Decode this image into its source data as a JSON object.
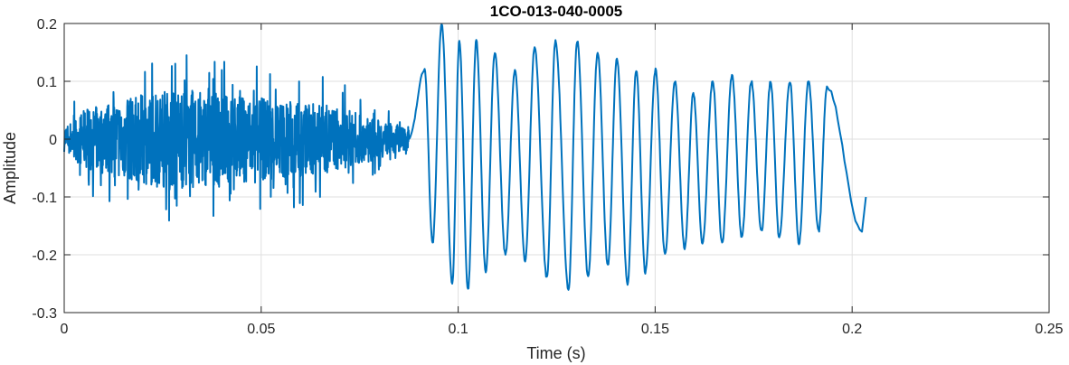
{
  "chart_data": {
    "type": "line",
    "title": "1CO-013-040-0005",
    "xlabel": "Time (s)",
    "ylabel": "Amplitude",
    "xlim": [
      0,
      0.25
    ],
    "ylim": [
      -0.3,
      0.2
    ],
    "xticks": [
      0,
      0.05,
      0.1,
      0.15,
      0.2,
      0.25
    ],
    "xtick_labels": [
      "0",
      "0.05",
      "0.1",
      "0.15",
      "0.2",
      "0.25"
    ],
    "yticks": [
      -0.3,
      -0.2,
      -0.1,
      0,
      0.1,
      0.2
    ],
    "ytick_labels": [
      "-0.3",
      "-0.2",
      "-0.1",
      "0",
      "0.1",
      "0.2"
    ],
    "grid": true,
    "line_color": "#0072BD",
    "series": [
      {
        "x_start": 0,
        "x_end": 0.2035,
        "noise_segment": {
          "x_end": 0.0875,
          "envelope": [
            [
              0.0,
              0.04
            ],
            [
              0.005,
              0.09
            ],
            [
              0.012,
              0.12
            ],
            [
              0.02,
              0.14
            ],
            [
              0.03,
              0.16
            ],
            [
              0.04,
              0.14
            ],
            [
              0.05,
              0.13
            ],
            [
              0.06,
              0.12
            ],
            [
              0.07,
              0.1
            ],
            [
              0.08,
              0.06
            ],
            [
              0.0875,
              0.03
            ]
          ]
        },
        "oscillation_cycles": [
          {
            "peak_x": 0.0915,
            "peak_y": 0.12,
            "trough_x": 0.0935,
            "trough_y": -0.18
          },
          {
            "peak_x": 0.0958,
            "peak_y": 0.2,
            "trough_x": 0.0985,
            "trough_y": -0.25
          },
          {
            "peak_x": 0.1003,
            "peak_y": 0.17,
            "trough_x": 0.1025,
            "trough_y": -0.26
          },
          {
            "peak_x": 0.1046,
            "peak_y": 0.17,
            "trough_x": 0.107,
            "trough_y": -0.23
          },
          {
            "peak_x": 0.1093,
            "peak_y": 0.15,
            "trough_x": 0.112,
            "trough_y": -0.2
          },
          {
            "peak_x": 0.1144,
            "peak_y": 0.12,
            "trough_x": 0.117,
            "trough_y": -0.21
          },
          {
            "peak_x": 0.1194,
            "peak_y": 0.16,
            "trough_x": 0.1225,
            "trough_y": -0.24
          },
          {
            "peak_x": 0.1247,
            "peak_y": 0.17,
            "trough_x": 0.128,
            "trough_y": -0.26
          },
          {
            "peak_x": 0.1302,
            "peak_y": 0.17,
            "trough_x": 0.133,
            "trough_y": -0.24
          },
          {
            "peak_x": 0.1354,
            "peak_y": 0.15,
            "trough_x": 0.138,
            "trough_y": -0.22
          },
          {
            "peak_x": 0.1403,
            "peak_y": 0.14,
            "trough_x": 0.143,
            "trough_y": -0.25
          },
          {
            "peak_x": 0.1452,
            "peak_y": 0.12,
            "trough_x": 0.1475,
            "trough_y": -0.23
          },
          {
            "peak_x": 0.1501,
            "peak_y": 0.12,
            "trough_x": 0.1525,
            "trough_y": -0.2
          },
          {
            "peak_x": 0.155,
            "peak_y": 0.1,
            "trough_x": 0.1575,
            "trough_y": -0.19
          },
          {
            "peak_x": 0.1597,
            "peak_y": 0.08,
            "trough_x": 0.162,
            "trough_y": -0.18
          },
          {
            "peak_x": 0.1646,
            "peak_y": 0.1,
            "trough_x": 0.167,
            "trough_y": -0.18
          },
          {
            "peak_x": 0.1695,
            "peak_y": 0.11,
            "trough_x": 0.172,
            "trough_y": -0.17
          },
          {
            "peak_x": 0.1744,
            "peak_y": 0.1,
            "trough_x": 0.177,
            "trough_y": -0.16
          },
          {
            "peak_x": 0.1793,
            "peak_y": 0.1,
            "trough_x": 0.1815,
            "trough_y": -0.17
          },
          {
            "peak_x": 0.1842,
            "peak_y": 0.1,
            "trough_x": 0.1865,
            "trough_y": -0.18
          },
          {
            "peak_x": 0.1889,
            "peak_y": 0.1,
            "trough_x": 0.1915,
            "trough_y": -0.16
          },
          {
            "peak_x": 0.1936,
            "peak_y": 0.09,
            "trough_x": 0.2025,
            "trough_y": -0.16
          }
        ],
        "end_y": -0.1
      }
    ]
  }
}
